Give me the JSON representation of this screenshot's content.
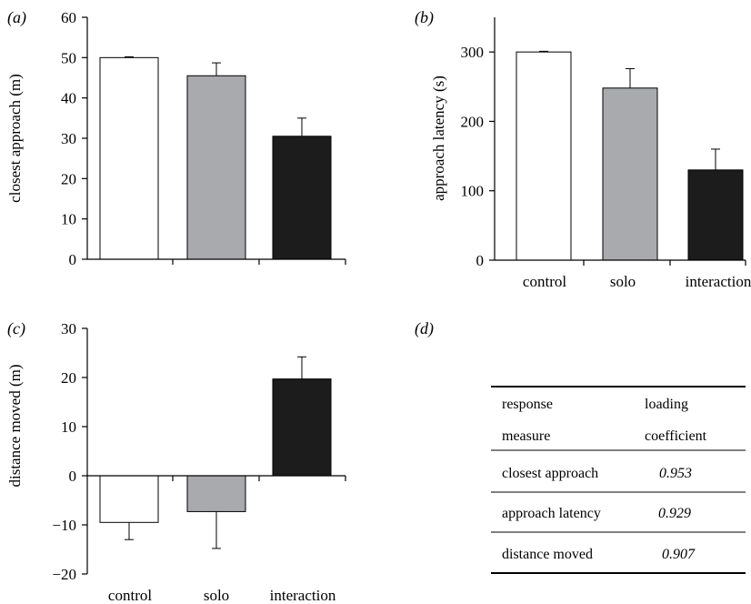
{
  "chart_data": [
    {
      "panel": "(a)",
      "type": "bar",
      "categories": [
        "control",
        "solo",
        "interaction"
      ],
      "values": [
        50,
        45.5,
        30.5
      ],
      "errors": [
        0.2,
        3.2,
        4.5
      ],
      "ylabel": "closest approach (m)",
      "ylim": [
        0,
        60
      ],
      "yticks": [
        0,
        10,
        20,
        30,
        40,
        50,
        60
      ],
      "show_category_labels": false,
      "colors": [
        "#ffffff",
        "#a8aaad",
        "#1c1c1c"
      ]
    },
    {
      "panel": "(b)",
      "type": "bar",
      "categories": [
        "control",
        "solo",
        "interaction"
      ],
      "values": [
        300,
        248,
        130
      ],
      "errors": [
        1,
        28,
        30
      ],
      "ylabel": "approach latency (s)",
      "ylim": [
        0,
        350
      ],
      "yticks": [
        0,
        100,
        200,
        300
      ],
      "show_category_labels": true,
      "colors": [
        "#ffffff",
        "#a8aaad",
        "#1c1c1c"
      ]
    },
    {
      "panel": "(c)",
      "type": "bar",
      "categories": [
        "control",
        "solo",
        "interaction"
      ],
      "values": [
        -9.5,
        -7.3,
        19.7
      ],
      "errors": [
        3.5,
        7.5,
        4.5
      ],
      "ylabel": "distance moved (m)",
      "ylim": [
        -20,
        30
      ],
      "yticks": [
        -20,
        -10,
        0,
        10,
        20,
        30
      ],
      "show_category_labels": true,
      "colors": [
        "#ffffff",
        "#a8aaad",
        "#1c1c1c"
      ]
    },
    {
      "panel": "(d)",
      "type": "table",
      "header": [
        [
          "response",
          "measure"
        ],
        [
          "loading",
          "coefficient"
        ]
      ],
      "rows": [
        [
          "closest approach",
          "0.953"
        ],
        [
          "approach latency",
          "0.929"
        ],
        [
          "distance moved",
          "0.907"
        ]
      ]
    }
  ]
}
